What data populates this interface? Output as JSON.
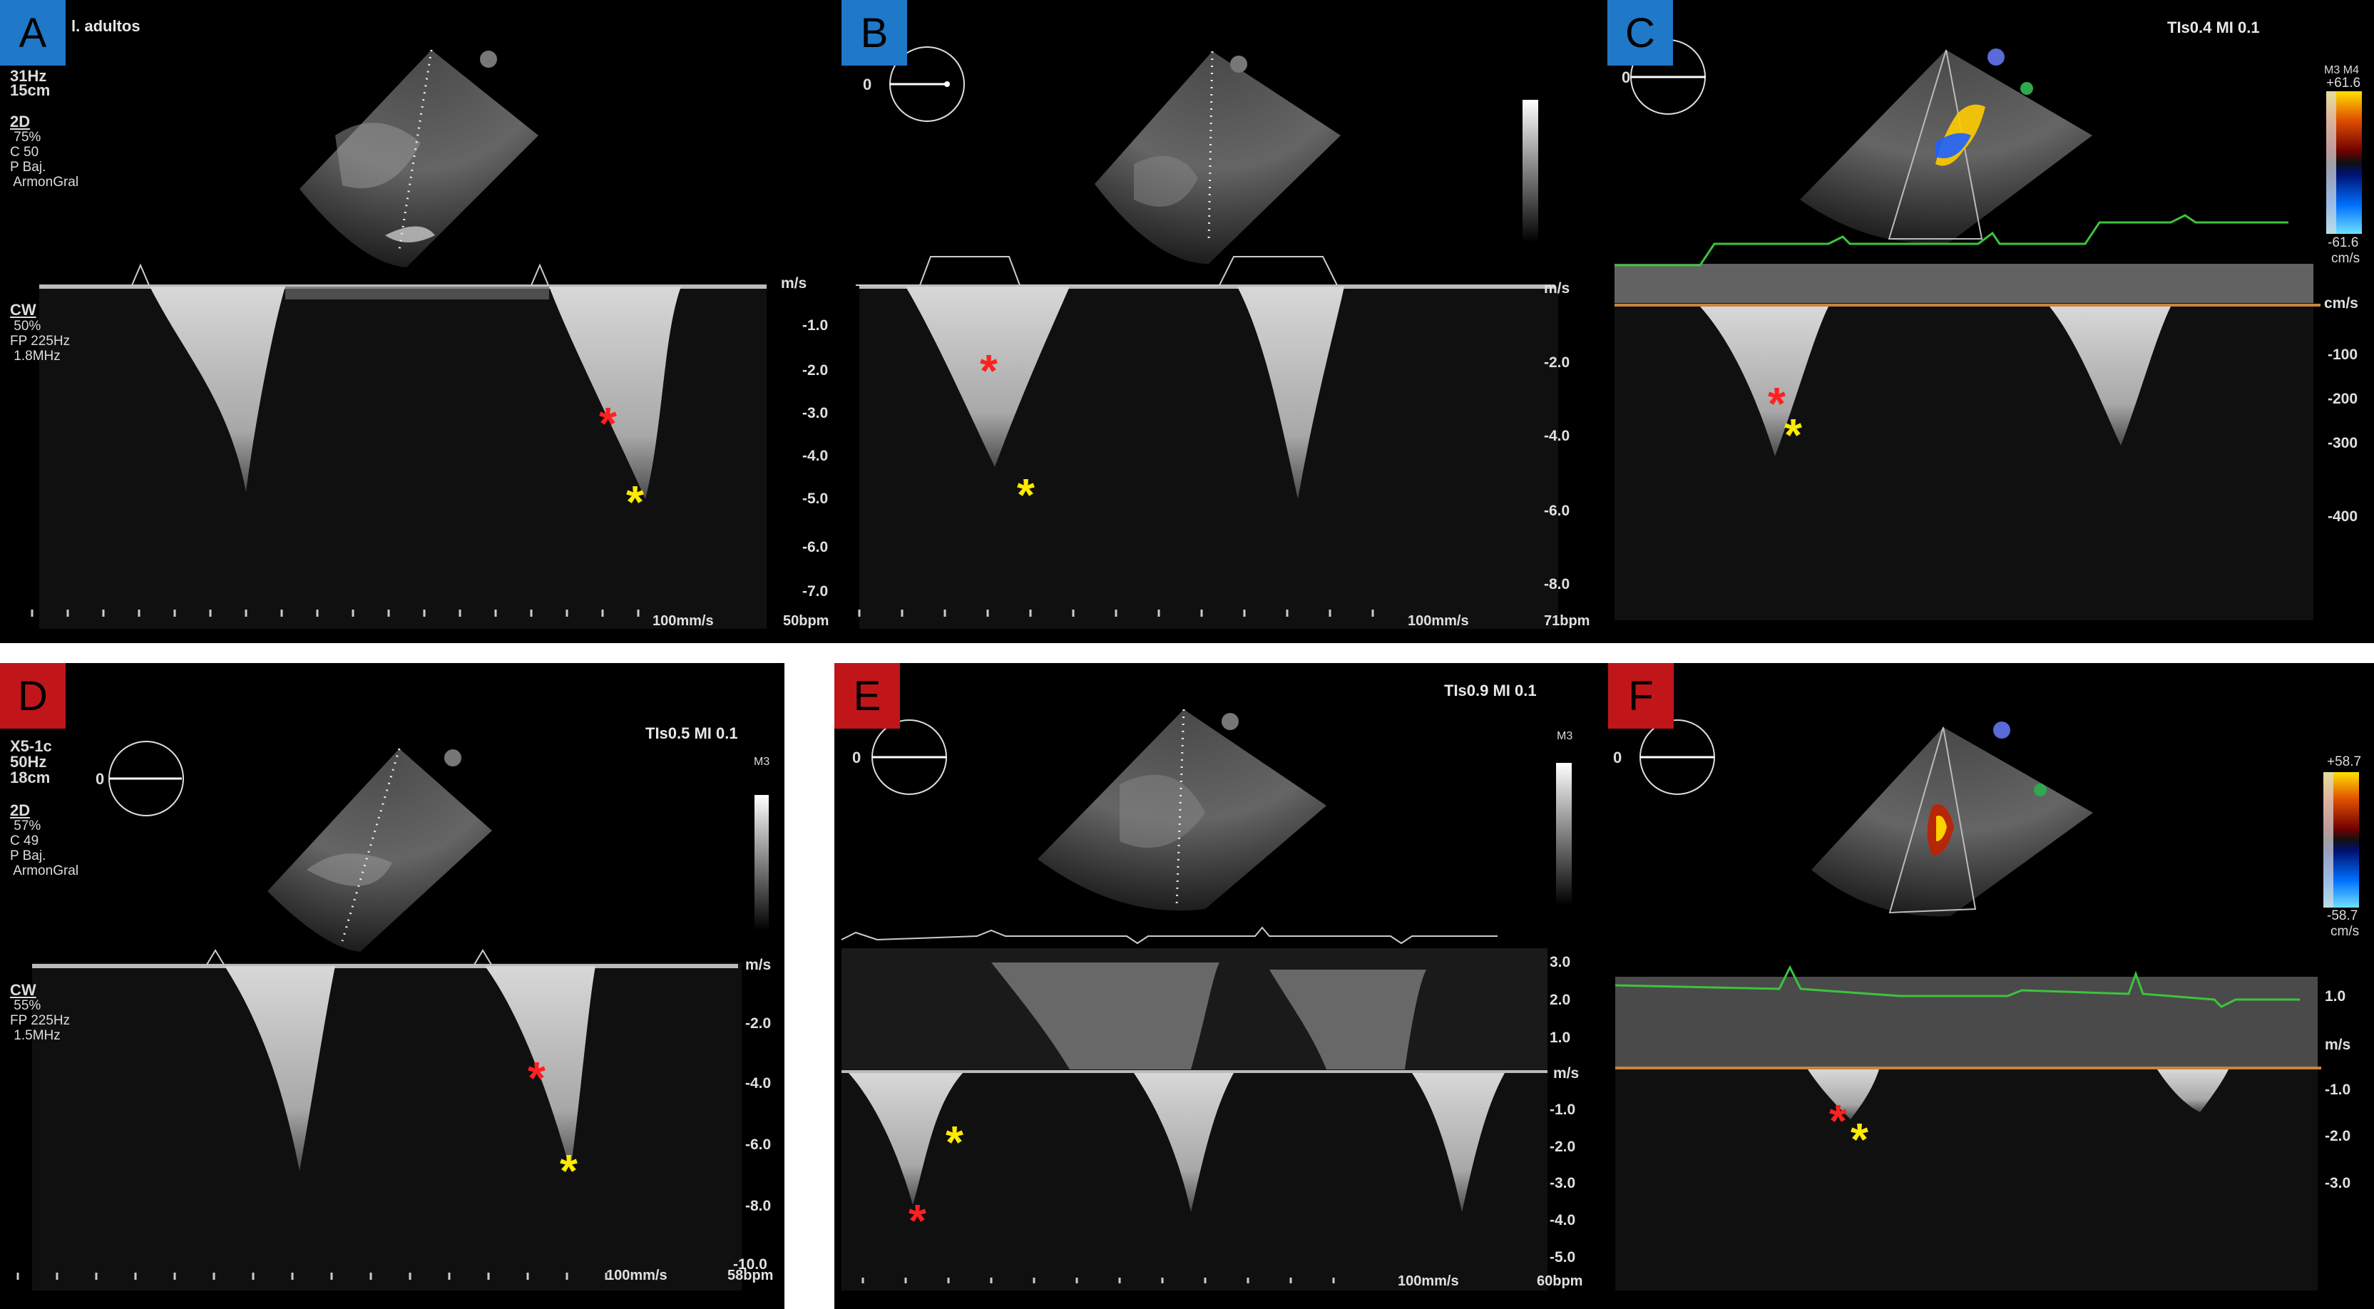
{
  "panels": {
    "A": {
      "label": "A",
      "header": "l. adultos",
      "settings": [
        "31Hz",
        "15cm",
        "",
        "2D",
        " 75%",
        "C 50",
        "P Baj.",
        " ArmonGral"
      ],
      "cw": [
        "CW",
        " 50%",
        "FP 225Hz",
        " 1.8MHz"
      ],
      "probe": "X5",
      "scale": [
        "m/s",
        "-1.0",
        "-2.0",
        "-3.0",
        "-4.0",
        "-5.0",
        "-6.0",
        "-7.0"
      ],
      "sweep": "100mm/s",
      "hr": "50bpm"
    },
    "B": {
      "label": "B",
      "angle": "0",
      "probe": "MD",
      "scale": [
        "m/s",
        "-2.0",
        "-4.0",
        "-6.0",
        "-8.0"
      ],
      "sweep": "100mm/s",
      "hr": "71bpm"
    },
    "C": {
      "label": "C",
      "tis": "TIs0.4   MI 0.1",
      "angle": "0",
      "probe": "X5",
      "colorbar": [
        "M3 M4",
        "+61.6",
        "-61.6",
        "cm/s"
      ],
      "scale": [
        "cm/s",
        "-100",
        "-200",
        "-300",
        "-400"
      ]
    },
    "D": {
      "label": "D",
      "tis": "TIs0.5   MI 0.1",
      "settings": [
        "X5-1c",
        "50Hz",
        "18cm",
        "",
        "2D",
        " 57%",
        "C 49",
        "P Baj.",
        " ArmonGral"
      ],
      "cw": [
        "CW",
        " 55%",
        "FP 225Hz",
        " 1.5MHz"
      ],
      "angle": "0",
      "probe": "X5",
      "gray_label": "M3",
      "scale": [
        "m/s",
        "-2.0",
        "-4.0",
        "-6.0",
        "-8.0",
        "-10.0"
      ],
      "sweep": "100mm/s",
      "hr": "58bpm"
    },
    "E": {
      "label": "E",
      "tis": "TIs0.9   MI 0.1",
      "angle": "0",
      "probe": "X5",
      "gray_label": "M3",
      "scale": [
        "3.0",
        "2.0",
        "1.0",
        "m/s",
        "-1.0",
        "-2.0",
        "-3.0",
        "-4.0",
        "-5.0"
      ],
      "sweep": "100mm/s",
      "hr": "60bpm"
    },
    "F": {
      "label": "F",
      "angle": "0",
      "probe": "MD",
      "colorbar": [
        "+58.7",
        "-58.7",
        "cm/s"
      ],
      "scale": [
        "1.0",
        "m/s",
        "-1.0",
        "-2.0",
        "-3.0"
      ]
    }
  },
  "markers": {
    "red": "*",
    "yellow": "*"
  },
  "colors": {
    "blue_badge": "#1f78c8",
    "red_badge": "#c0161a",
    "red_star": "#ff2020",
    "yellow_star": "#ffeb00",
    "ecg_green": "#3cc43c",
    "baseline_orange": "#c8843c"
  }
}
